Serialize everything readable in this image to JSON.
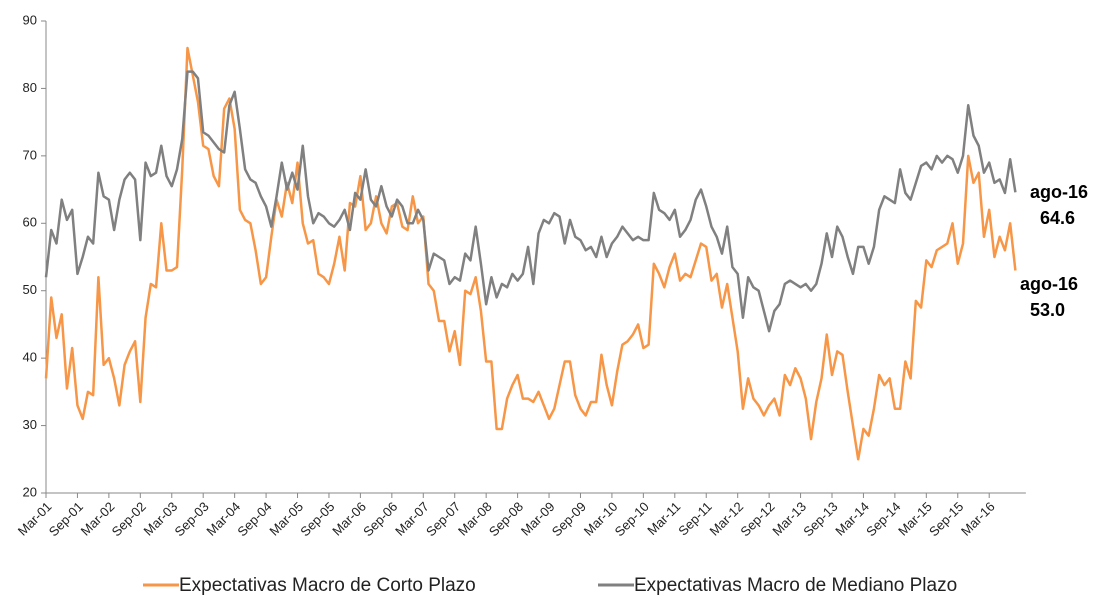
{
  "chart_data": {
    "type": "line",
    "categories": [
      "Mar-01",
      null,
      null,
      null,
      null,
      null,
      "Sep-01",
      null,
      null,
      null,
      null,
      null,
      "Mar-02",
      null,
      null,
      null,
      null,
      null,
      "Sep-02",
      null,
      null,
      null,
      null,
      null,
      "Mar-03",
      null,
      null,
      null,
      null,
      null,
      "Sep-03",
      null,
      null,
      null,
      null,
      null,
      "Mar-04",
      null,
      null,
      null,
      null,
      null,
      "Sep-04",
      null,
      null,
      null,
      null,
      null,
      "Mar-05",
      null,
      null,
      null,
      null,
      null,
      "Sep-05",
      null,
      null,
      null,
      null,
      null,
      "Mar-06",
      null,
      null,
      null,
      null,
      null,
      "Sep-06",
      null,
      null,
      null,
      null,
      null,
      "Mar-07",
      null,
      null,
      null,
      null,
      null,
      "Sep-07",
      null,
      null,
      null,
      null,
      null,
      "Mar-08",
      null,
      null,
      null,
      null,
      null,
      "Sep-08",
      null,
      null,
      null,
      null,
      null,
      "Mar-09",
      null,
      null,
      null,
      null,
      null,
      "Sep-09",
      null,
      null,
      null,
      null,
      null,
      "Mar-10",
      null,
      null,
      null,
      null,
      null,
      "Sep-10",
      null,
      null,
      null,
      null,
      null,
      "Mar-11",
      null,
      null,
      null,
      null,
      null,
      "Sep-11",
      null,
      null,
      null,
      null,
      null,
      "Mar-12",
      null,
      null,
      null,
      null,
      null,
      "Sep-12",
      null,
      null,
      null,
      null,
      null,
      "Mar-13",
      null,
      null,
      null,
      null,
      null,
      "Sep-13",
      null,
      null,
      null,
      null,
      null,
      "Mar-14",
      null,
      null,
      null,
      null,
      null,
      "Sep-14",
      null,
      null,
      null,
      null,
      null,
      "Mar-15",
      null,
      null,
      null,
      null,
      null,
      "Sep-15",
      null,
      null,
      null,
      null,
      null,
      "Mar-16",
      null,
      null,
      null,
      null,
      null
    ],
    "series": [
      {
        "name": "Expectativas Macro de Corto Plazo",
        "color": "#f79646",
        "end_category": "ago-16",
        "end_value_label": "53.0",
        "values": [
          37,
          49,
          43,
          46.5,
          35.5,
          41.5,
          33,
          31,
          35,
          34.5,
          52,
          39,
          40,
          37,
          33,
          39,
          41,
          42.5,
          33.5,
          46,
          51,
          50.5,
          60,
          53,
          53,
          53.5,
          68,
          86,
          82,
          78,
          71.5,
          71,
          67,
          65.5,
          77,
          78.5,
          74,
          62,
          60.5,
          60,
          56,
          51,
          52,
          58,
          63.5,
          61,
          66,
          63,
          69,
          60,
          57,
          57.5,
          52.5,
          52,
          51,
          54,
          58,
          53,
          63,
          62.5,
          67,
          59,
          60,
          64,
          60,
          58.5,
          62.5,
          63,
          59.5,
          59,
          64,
          60,
          61,
          51,
          50,
          45.5,
          45.5,
          41,
          44,
          39,
          50,
          49.5,
          52,
          47,
          39.5,
          39.5,
          29.5,
          29.5,
          34,
          36,
          37.5,
          34,
          34,
          33.5,
          35,
          33,
          31,
          32.5,
          36,
          39.5,
          39.5,
          34.5,
          32.5,
          31.5,
          33.5,
          33.5,
          40.5,
          36,
          33,
          38,
          42,
          42.5,
          43.5,
          45,
          41.5,
          42,
          54,
          52.5,
          50.5,
          53.5,
          55.5,
          51.5,
          52.5,
          52,
          54.5,
          57,
          56.5,
          51.5,
          52.5,
          47.5,
          51,
          46,
          41,
          32.5,
          37,
          34,
          33,
          31.5,
          33,
          34,
          31.5,
          37.5,
          36,
          38.5,
          37,
          34,
          28,
          33.5,
          37,
          43.5,
          37.5,
          41,
          40.5,
          35,
          30,
          25,
          29.5,
          28.5,
          32.5,
          37.5,
          36,
          37,
          32.5,
          32.5,
          39.5,
          37,
          48.5,
          47.5,
          54.5,
          53.5,
          56,
          56.5,
          57,
          60,
          54,
          57,
          70,
          66,
          67.5,
          58,
          62,
          55,
          58,
          56,
          60,
          53
        ]
      },
      {
        "name": "Expectativas Macro de Mediano Plazo",
        "color": "#808080",
        "end_category": "ago-16",
        "end_value_label": "64.6",
        "values": [
          52,
          59,
          57,
          63.5,
          60.5,
          62,
          52.5,
          55,
          58,
          57,
          67.5,
          64,
          63.5,
          59,
          63.5,
          66.5,
          67.5,
          66.5,
          57.5,
          69,
          67,
          67.5,
          71.5,
          67,
          65.5,
          68,
          72.5,
          82.5,
          82.5,
          81.5,
          73.5,
          73,
          72,
          71,
          70.5,
          77.5,
          79.5,
          74,
          68,
          66.5,
          66,
          64,
          62.5,
          59.5,
          64,
          69,
          65,
          67.5,
          65,
          71.5,
          64,
          60,
          61.5,
          61,
          60,
          59.5,
          60.5,
          62,
          59,
          64.5,
          63.5,
          68,
          63.5,
          62.5,
          65.5,
          62.5,
          61,
          63.5,
          62.5,
          60,
          60,
          62,
          60.5,
          53,
          55.5,
          55,
          54.5,
          51,
          52,
          51.5,
          55.5,
          54.5,
          59.5,
          54,
          48,
          52,
          49,
          51,
          50.5,
          52.5,
          51.5,
          52.5,
          56.5,
          51,
          58.5,
          60.5,
          60,
          61.5,
          61,
          57,
          60.5,
          58,
          57.5,
          56,
          56.5,
          55,
          58,
          55,
          57,
          58,
          59.5,
          58.5,
          57.5,
          58,
          57.5,
          57.5,
          64.5,
          62,
          61.5,
          60.5,
          62,
          58,
          59,
          60.5,
          63.5,
          65,
          62.5,
          59.5,
          58,
          55.5,
          59.5,
          53.5,
          52.5,
          46,
          52,
          50.5,
          50,
          47,
          44,
          47,
          48,
          51,
          51.5,
          51,
          50.5,
          51,
          50,
          51,
          54,
          58.5,
          55,
          59.5,
          58,
          55,
          52.5,
          56.5,
          56.5,
          54,
          56.5,
          62,
          64,
          63.5,
          63,
          68,
          64.5,
          63.5,
          66,
          68.5,
          69,
          68,
          70,
          69,
          70,
          69.5,
          67.5,
          70,
          77.5,
          73,
          71.5,
          67.5,
          69,
          66,
          66.5,
          64.5,
          69.5,
          64.6
        ]
      }
    ],
    "ylim": [
      20,
      90
    ],
    "yticks": [
      20,
      30,
      40,
      50,
      60,
      70,
      80,
      90
    ],
    "grid": false,
    "legend": "bottom"
  }
}
